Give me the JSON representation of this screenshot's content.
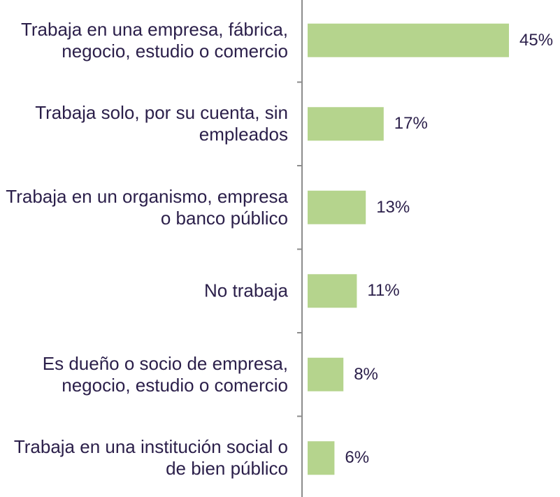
{
  "chart_data": {
    "type": "bar",
    "orientation": "horizontal",
    "categories": [
      "Trabaja en una empresa, fábrica, negocio, estudio o comercio",
      "Trabaja solo, por su cuenta, sin empleados",
      "Trabaja en un organismo, empresa o banco público",
      "No trabaja",
      "Es dueño o socio de empresa, negocio, estudio o comercio",
      "Trabaja en una institución social o de bien público"
    ],
    "values": [
      45,
      17,
      13,
      11,
      8,
      6
    ],
    "value_labels": [
      "45%",
      "17%",
      "13%",
      "11%",
      "8%",
      "6%"
    ],
    "color": "#b5d48d",
    "xlim": [
      0,
      50
    ]
  }
}
